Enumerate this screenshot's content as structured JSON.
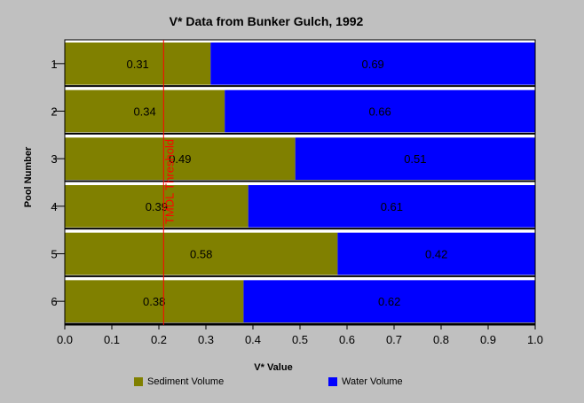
{
  "chart_data": {
    "type": "bar",
    "orientation": "horizontal",
    "stacked": true,
    "title": "V* Data from Bunker Gulch, 1992",
    "xlabel": "V* Value",
    "ylabel": "Pool Number",
    "categories": [
      "1",
      "2",
      "3",
      "4",
      "5",
      "6"
    ],
    "series": [
      {
        "name": "Sediment Volume",
        "color": "#808000",
        "values": [
          0.31,
          0.34,
          0.49,
          0.39,
          0.58,
          0.38
        ],
        "labels": [
          "0.31",
          "0.34",
          "0.49",
          "0.39",
          "0.58",
          "0.38"
        ]
      },
      {
        "name": "Water Volume",
        "color": "#0000ff",
        "values": [
          0.69,
          0.66,
          0.51,
          0.61,
          0.42,
          0.62
        ],
        "labels": [
          "0.69",
          "0.66",
          "0.51",
          "0.61",
          "0.42",
          "0.62"
        ]
      }
    ],
    "xlim": [
      0,
      1
    ],
    "xticks": [
      "0.0",
      "0.1",
      "0.2",
      "0.3",
      "0.4",
      "0.5",
      "0.6",
      "0.7",
      "0.8",
      "0.9",
      "1.0"
    ],
    "threshold": {
      "value": 0.21,
      "label": "TMDL Threshold",
      "color": "#ff0000"
    },
    "legend_position": "bottom",
    "grid": false
  }
}
